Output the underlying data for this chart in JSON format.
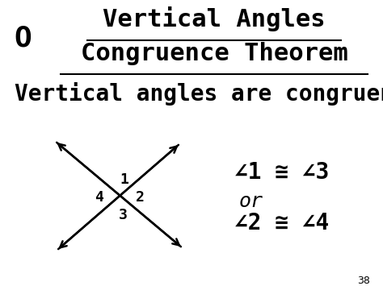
{
  "bg_color": "#ffffff",
  "title_line1": "Vertical Angles",
  "title_line2": "Congruence Theorem",
  "bullet_char": "O",
  "subtitle": "Vertical angles are congruent.",
  "eq1": "∠1 ≅ ∠3",
  "or_text": "or",
  "eq2": "∠2 ≅ ∠4",
  "label1": "1",
  "label2": "2",
  "label3": "3",
  "label4": "4",
  "page_num": "38",
  "title_fontsize": 22,
  "subtitle_fontsize": 20,
  "eq_fontsize": 20,
  "label_fontsize": 13,
  "text_color": "#000000"
}
